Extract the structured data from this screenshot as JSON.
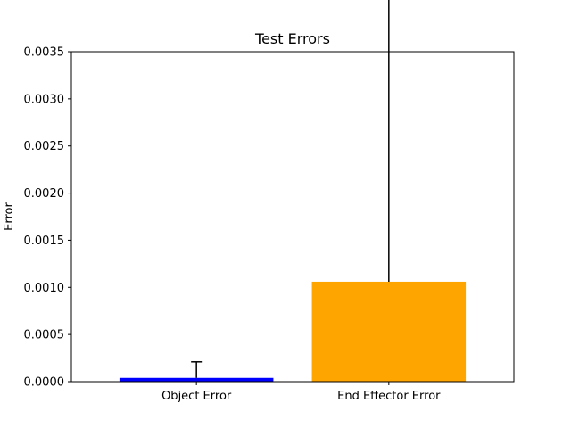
{
  "chart_data": {
    "type": "bar",
    "title": "Test Errors",
    "xlabel": "",
    "ylabel": "Error",
    "categories": [
      "Object Error",
      "End Effector Error"
    ],
    "values": [
      4e-05,
      0.00106
    ],
    "error_upper": [
      0.00017,
      0.00331
    ],
    "error_lower": [
      0.0,
      0.0
    ],
    "colors": [
      "#0000ff",
      "#ffa500"
    ],
    "ylim": [
      0,
      0.0035
    ],
    "yticks": [
      "0.0000",
      "0.0005",
      "0.0010",
      "0.0015",
      "0.0020",
      "0.0025",
      "0.0030",
      "0.0035"
    ],
    "grid": false,
    "legend": "none"
  }
}
